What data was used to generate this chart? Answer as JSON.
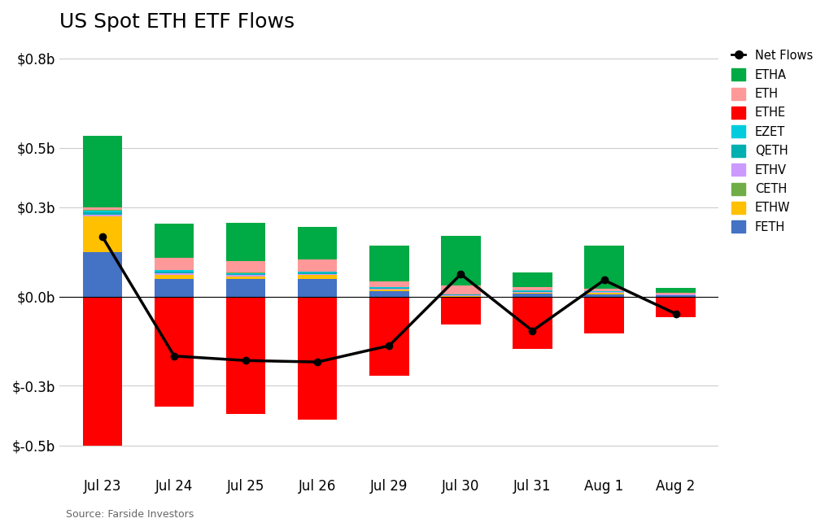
{
  "title": "US Spot ETH ETF Flows",
  "source": "Source: Farside Investors",
  "dates": [
    "Jul 23",
    "Jul 24",
    "Jul 25",
    "Jul 26",
    "Jul 29",
    "Jul 30",
    "Jul 31",
    "Aug 1",
    "Aug 2"
  ],
  "series": {
    "FETH": [
      0.148,
      0.06,
      0.058,
      0.06,
      0.018,
      0.0,
      0.01,
      0.008,
      0.005
    ],
    "ETHW": [
      0.12,
      0.012,
      0.01,
      0.012,
      0.006,
      0.002,
      0.003,
      0.004,
      0.0
    ],
    "ETHV": [
      0.008,
      0.006,
      0.004,
      0.004,
      0.003,
      0.002,
      0.003,
      0.002,
      0.001
    ],
    "QETH": [
      0.007,
      0.006,
      0.004,
      0.004,
      0.003,
      0.002,
      0.002,
      0.002,
      0.001
    ],
    "EZET": [
      0.005,
      0.004,
      0.003,
      0.003,
      0.002,
      0.001,
      0.002,
      0.001,
      0.001
    ],
    "CETH": [
      0.002,
      0.002,
      0.001,
      0.001,
      0.001,
      0.001,
      0.001,
      0.001,
      0.0
    ],
    "ETH": [
      0.01,
      0.04,
      0.038,
      0.04,
      0.018,
      0.03,
      0.01,
      0.008,
      0.004
    ],
    "ETHA": [
      0.24,
      0.115,
      0.13,
      0.11,
      0.12,
      0.165,
      0.05,
      0.145,
      0.018
    ],
    "ETHE": [
      -0.5,
      -0.37,
      -0.395,
      -0.415,
      -0.265,
      -0.095,
      -0.175,
      -0.125,
      -0.07
    ]
  },
  "net_flows": [
    0.2,
    -0.2,
    -0.215,
    -0.22,
    -0.165,
    0.075,
    -0.115,
    0.055,
    -0.058
  ],
  "colors": {
    "FETH": "#4472C4",
    "ETHW": "#FFC000",
    "ETHV": "#CC99FF",
    "QETH": "#00B0B0",
    "EZET": "#00CCDD",
    "CETH": "#70AD47",
    "ETH": "#FF9999",
    "ETHA": "#00AA44",
    "ETHE": "#FF0000"
  },
  "pos_order": [
    "FETH",
    "ETHW",
    "ETHV",
    "QETH",
    "EZET",
    "CETH",
    "ETH",
    "ETHA"
  ],
  "neg_order": [
    "ETHE"
  ],
  "legend_order": [
    "Net Flows",
    "ETHA",
    "ETH",
    "ETHE",
    "EZET",
    "QETH",
    "ETHV",
    "CETH",
    "ETHW",
    "FETH"
  ],
  "ylim": [
    -0.6,
    0.85
  ],
  "yticks": [
    -0.5,
    -0.3,
    0.0,
    0.3,
    0.5,
    0.8
  ],
  "background_color": "#ffffff",
  "grid_color": "#cccccc",
  "title_fontsize": 18,
  "label_fontsize": 12,
  "bar_width": 0.55
}
